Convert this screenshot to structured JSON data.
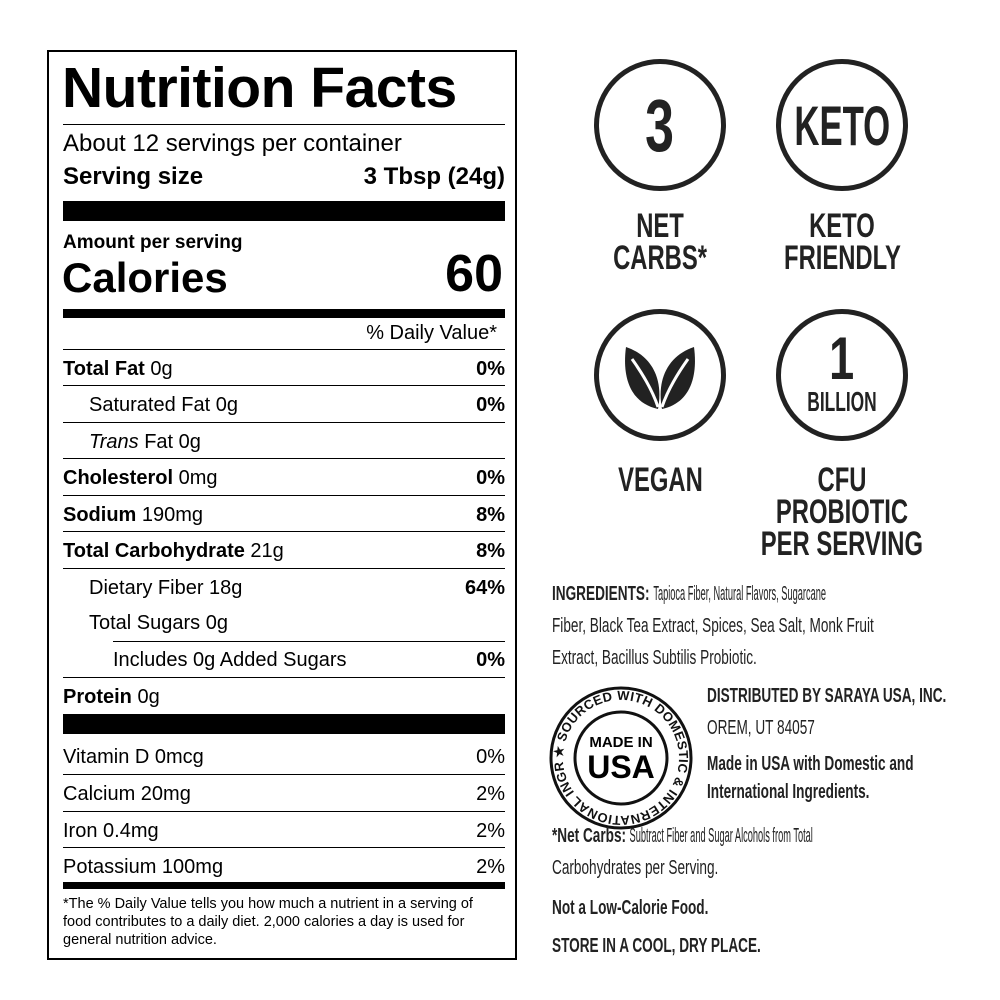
{
  "label": {
    "title": "Nutrition Facts",
    "servings": "About 12 servings per container",
    "serving_size_label": "Serving size",
    "serving_size_value": "3 Tbsp (24g)",
    "amount_per_serving": "Amount per serving",
    "calories_label": "Calories",
    "calories_value": "60",
    "dv_header": "% Daily Value*",
    "nutrients": [
      {
        "bold": "Total Fat",
        "amount": " 0g",
        "dv": "0%"
      },
      {
        "bold": "",
        "amount": "Saturated Fat 0g",
        "dv": "0%"
      },
      {
        "italic": "Trans",
        "amount": " Fat 0g",
        "dv": ""
      },
      {
        "bold": "Cholesterol",
        "amount": " 0mg",
        "dv": "0%"
      },
      {
        "bold": "Sodium",
        "amount": " 190mg",
        "dv": "8%"
      },
      {
        "bold": "Total Carbohydrate",
        "amount": " 21g",
        "dv": "8%"
      },
      {
        "bold": "",
        "amount": "Dietary Fiber 18g",
        "dv": "64%"
      },
      {
        "bold": "",
        "amount": "Total Sugars 0g",
        "dv": ""
      },
      {
        "bold": "",
        "amount": "Includes 0g Added Sugars",
        "dv": "0%"
      },
      {
        "bold": "Protein",
        "amount": " 0g",
        "dv": ""
      }
    ],
    "vitamins": [
      {
        "name": "Vitamin D 0mcg",
        "dv": "0%"
      },
      {
        "name": "Calcium 20mg",
        "dv": "2%"
      },
      {
        "name": "Iron 0.4mg",
        "dv": "2%"
      },
      {
        "name": "Potassium 100mg",
        "dv": "2%"
      }
    ],
    "footnote": "*The % Daily Value tells you how much a nutrient in a serving of food contributes to a daily diet. 2,000 calories a day is used for general nutrition advice."
  },
  "badges": [
    {
      "icon_text": "3",
      "label_1": "NET",
      "label_2": "CARBS*"
    },
    {
      "icon_text": "KETO",
      "label_1": "KETO",
      "label_2": "FRIENDLY"
    },
    {
      "icon": "leaf-icon",
      "label_1": "VEGAN"
    },
    {
      "icon_text": "1",
      "icon_sub": "BILLION",
      "label_1": "CFU PROBIOTIC",
      "label_2": "PER SERVING"
    }
  ],
  "ingredients": {
    "heading": "INGREDIENTS:",
    "lines": [
      "Tapioca Fiber, Natural Flavors, Sugarcane",
      "Fiber, Black Tea Extract, Spices, Sea Salt, Monk Fruit",
      "Extract, Bacillus Subtilis Probiotic."
    ]
  },
  "seal": {
    "center_1": "MADE IN",
    "center_2": "USA",
    "ring": "SOURCED WITH DOMESTIC & INTERNATIONAL INGREDIENTS"
  },
  "distributor": {
    "line_1": "DISTRIBUTED BY SARAYA USA, INC.",
    "line_2": "OREM, UT 84057",
    "made_1": "Made in USA with Domestic and",
    "made_2": "International Ingredients."
  },
  "notes": {
    "net_carbs_heading": "*Net Carbs:",
    "net_carbs_1": "Subtract Fiber and Sugar Alcohols from Total",
    "net_carbs_2": "Carbohydrates per Serving.",
    "low_cal": "Not a Low-Calorie Food.",
    "store": "STORE IN A COOL, DRY PLACE."
  }
}
